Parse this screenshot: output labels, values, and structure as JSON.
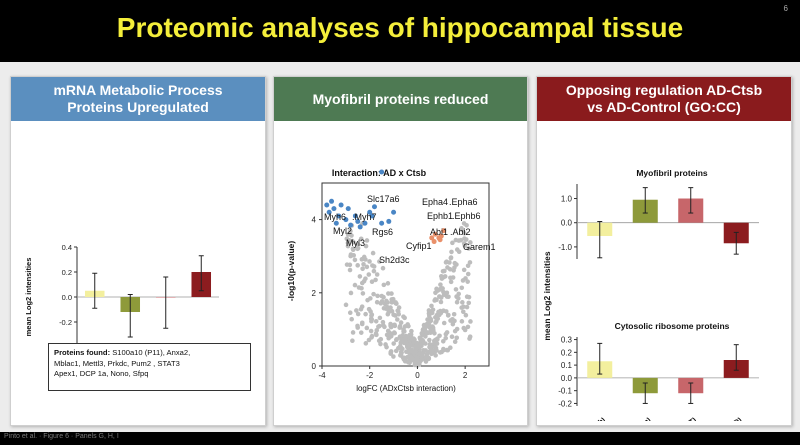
{
  "slide": {
    "title": "Proteomic analyses of hippocampal tissue",
    "number": "6",
    "footer": "Pinto et al. · Figure 6 · Panels G, H, I"
  },
  "panels": {
    "left": {
      "header_line1": "mRNA Metabolic Process",
      "header_line2": "Proteins Upregulated",
      "proteins_label": "Proteins found:",
      "proteins_line1": " S100a10 (P11), Anxa2,",
      "proteins_line2": "Mblac1,  Mettl3, Prkdc, Pum2 , STAT3",
      "proteins_line3": "Apex1, DCP 1a, Nono, Sfpq"
    },
    "middle": {
      "header": "Myofibril proteins reduced"
    },
    "right": {
      "header_line1": "Opposing regulation AD-Ctsb",
      "header_line2": "vs AD-Control (GO:CC)"
    }
  },
  "colors": {
    "wt_ctsb": "#f3ef9e",
    "wt_con": "#8e9a3a",
    "ctsb_con_wt": "#c7666a",
    "ctsb_con_ad": "#8c1c1f",
    "volcano_gray": "#bdbdbd",
    "volcano_blue": "#4a86c5",
    "volcano_orange": "#e9906a"
  },
  "chart_data": [
    {
      "type": "bar",
      "title": "",
      "xlabel": "",
      "ylabel": "mean Log2 intensities",
      "ylim": [
        -0.4,
        0.4
      ],
      "yticks": [
        "0.4",
        "0.2",
        "0.0",
        "-0.2",
        "-0.4"
      ],
      "categories": [
        "AD - WT (Ctsb)",
        "AD - WT (Con)",
        "Ctsb - Con (WT)",
        "Ctsb - Con (AD)"
      ],
      "values": [
        0.05,
        -0.12,
        0.0,
        0.2
      ],
      "err_low": [
        -0.09,
        -0.32,
        -0.25,
        0.05
      ],
      "err_high": [
        0.19,
        0.02,
        0.16,
        0.33
      ],
      "colors": [
        "#f3ef9e",
        "#8e9a3a",
        "#c7666a",
        "#8c1c1f"
      ]
    },
    {
      "type": "scatter",
      "title": "Interaction: AD x Ctsb",
      "xlabel": "logFC (ADxCtsb interaction)",
      "ylabel": "-log10(p-value)",
      "xlim": [
        -4,
        3
      ],
      "ylim": [
        0,
        5
      ],
      "xticks": [
        "-4",
        "-2",
        "0",
        "2"
      ],
      "yticks": [
        "0",
        "2",
        "4"
      ],
      "labels": [
        "Slc17a6",
        "Epha4",
        ".Epha6",
        "Myh6",
        ".Myh7",
        "Ephb1",
        ".Ephb6",
        "Myl2",
        "Rgs6",
        "Abi1",
        ".Abi2",
        "Myl3",
        "Cyfip1",
        "Garem1",
        "Sh2d3c"
      ],
      "series": [
        {
          "points": [
            [
              -3.7,
              4.2
            ],
            [
              -3.5,
              4.3
            ],
            [
              -3.3,
              4.1
            ],
            [
              -3.6,
              4.5
            ],
            [
              -3.2,
              4.4
            ],
            [
              -2.9,
              4.3
            ],
            [
              -3.0,
              4.0
            ],
            [
              -2.6,
              4.1
            ],
            [
              -2.5,
              3.95
            ],
            [
              -2.2,
              3.9
            ],
            [
              -2.0,
              4.2
            ],
            [
              -1.5,
              3.9
            ],
            [
              -1.2,
              3.95
            ],
            [
              -1.0,
              4.2
            ],
            [
              -2.4,
              3.8
            ],
            [
              -3.4,
              3.9
            ],
            [
              -1.8,
              4.35
            ],
            [
              -2.8,
              3.85
            ],
            [
              -1.5,
              5.3
            ],
            [
              -1.9,
              4.1
            ],
            [
              -3.8,
              4.4
            ]
          ]
        },
        {
          "points": [
            [
              0.6,
              3.5
            ],
            [
              0.75,
              3.6
            ],
            [
              0.9,
              3.5
            ],
            [
              1.0,
              3.55
            ],
            [
              1.1,
              3.7
            ],
            [
              0.7,
              3.4
            ],
            [
              0.95,
              3.45
            ]
          ]
        }
      ]
    },
    {
      "type": "bar",
      "title": "Myofibril proteins",
      "xlabel": "",
      "ylabel": "mean Log2 intensities",
      "ylim": [
        -1.5,
        1.6
      ],
      "yticks": [
        "1.0",
        "0.0",
        "-1.0"
      ],
      "categories": [
        "AD - WT (Ctsb)",
        "AD - WT (Con)",
        "Ctsb - Con (WT)",
        "Ctsb - Con (AD)"
      ],
      "values": [
        -0.55,
        0.95,
        1.0,
        -0.85
      ],
      "err_low": [
        -1.45,
        0.4,
        0.4,
        -1.3
      ],
      "err_high": [
        0.05,
        1.45,
        1.45,
        -0.4
      ],
      "colors": [
        "#f3ef9e",
        "#8e9a3a",
        "#c7666a",
        "#8c1c1f"
      ]
    },
    {
      "type": "bar",
      "title": "Cytosolic ribosome proteins",
      "xlabel": "",
      "ylabel": "mean Log2 intensities",
      "ylim": [
        -0.22,
        0.32
      ],
      "yticks": [
        "0.3",
        "0.2",
        "0.1",
        "0.0",
        "-0.1",
        "-0.2"
      ],
      "categories": [
        "AD - WT (Ctsb)",
        "AD - WT (Con)",
        "Ctsb - Con (WT)",
        "Ctsb - Con (AD)"
      ],
      "values": [
        0.13,
        -0.12,
        -0.12,
        0.14
      ],
      "err_low": [
        0.03,
        -0.2,
        -0.2,
        0.06
      ],
      "err_high": [
        0.27,
        -0.04,
        -0.04,
        0.26
      ],
      "colors": [
        "#f3ef9e",
        "#8e9a3a",
        "#c7666a",
        "#8c1c1f"
      ]
    }
  ]
}
